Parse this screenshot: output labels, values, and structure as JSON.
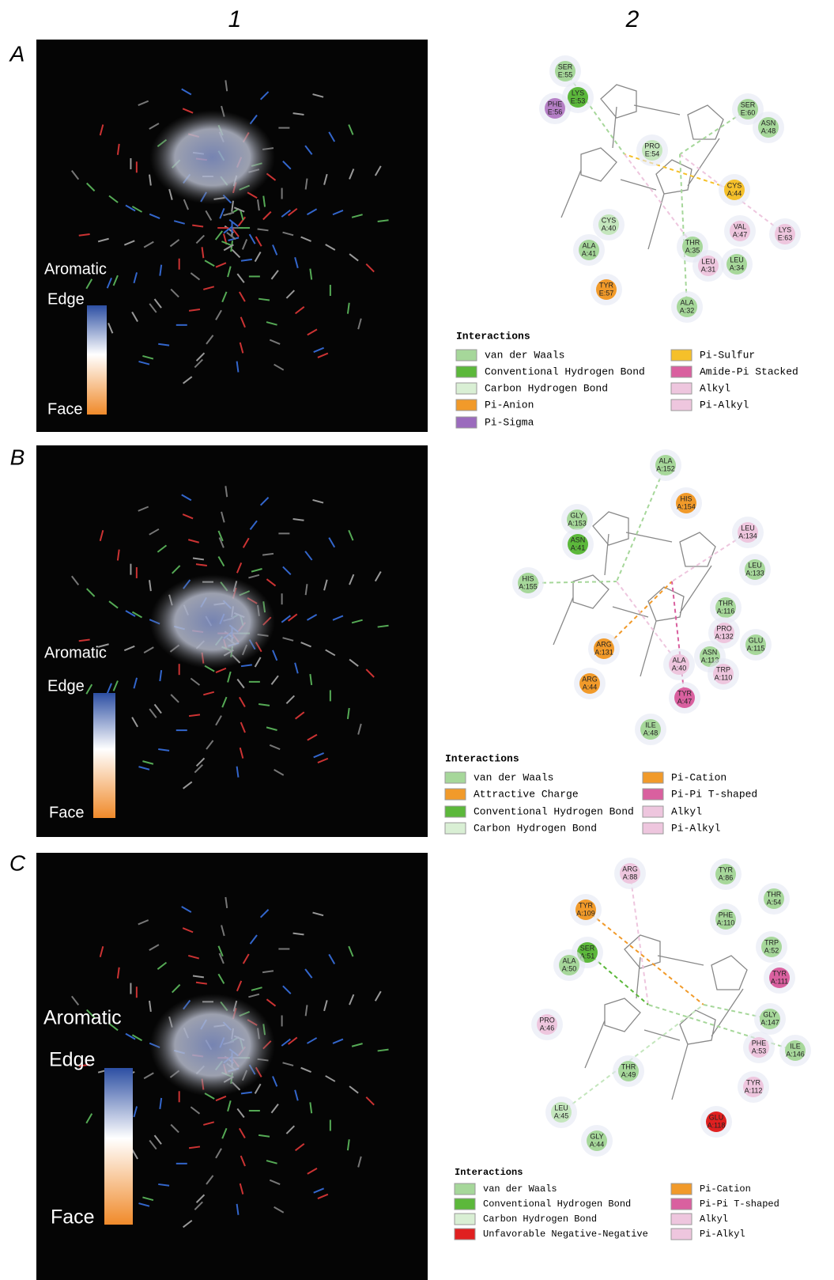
{
  "column_headers": [
    "1",
    "2"
  ],
  "panels": [
    {
      "label": "A",
      "surface_legend": {
        "title": "Aromatic",
        "top": "Edge",
        "bottom": "Face"
      },
      "residues": [
        {
          "res": "SER",
          "id": "E:55",
          "color": "#a6d79a"
        },
        {
          "res": "LYS",
          "id": "E:53",
          "color": "#5cb83b"
        },
        {
          "res": "PHE",
          "id": "E:56",
          "color": "#b57fc6"
        },
        {
          "res": "SER",
          "id": "E:60",
          "color": "#a6d79a"
        },
        {
          "res": "ASN",
          "id": "A:48",
          "color": "#a6d79a"
        },
        {
          "res": "PRO",
          "id": "E:54",
          "color": "#c4e6bd"
        },
        {
          "res": "CYS",
          "id": "A:44",
          "color": "#f5c02a"
        },
        {
          "res": "CYS",
          "id": "A:40",
          "color": "#c4e6bd"
        },
        {
          "res": "VAL",
          "id": "A:47",
          "color": "#eec6de"
        },
        {
          "res": "LYS",
          "id": "E:63",
          "color": "#eec6de"
        },
        {
          "res": "ALA",
          "id": "A:41",
          "color": "#a6d79a"
        },
        {
          "res": "THR",
          "id": "A:35",
          "color": "#a6d79a"
        },
        {
          "res": "LEU",
          "id": "A:31",
          "color": "#eec6de"
        },
        {
          "res": "LEU",
          "id": "A:34",
          "color": "#a6d79a"
        },
        {
          "res": "TYR",
          "id": "E:57",
          "color": "#f19a2a"
        },
        {
          "res": "ALA",
          "id": "A:32",
          "color": "#a6d79a"
        }
      ],
      "interactions": {
        "title": "Interactions",
        "items": [
          {
            "label": "van der Waals",
            "color": "#a6d79a"
          },
          {
            "label": "Conventional Hydrogen Bond",
            "color": "#5cb83b"
          },
          {
            "label": "Carbon Hydrogen Bond",
            "color": "#d9efd4"
          },
          {
            "label": "Pi-Anion",
            "color": "#f19a2a"
          },
          {
            "label": "Pi-Sigma",
            "color": "#9b6bbd"
          },
          {
            "label": "Pi-Sulfur",
            "color": "#f5c02a"
          },
          {
            "label": "Amide-Pi Stacked",
            "color": "#d9609f"
          },
          {
            "label": "Alkyl",
            "color": "#eec6de"
          },
          {
            "label": "Pi-Alkyl",
            "color": "#eec6de"
          }
        ]
      }
    },
    {
      "label": "B",
      "surface_legend": {
        "title": "Aromatic",
        "top": "Edge",
        "bottom": "Face"
      },
      "residues": [
        {
          "res": "ALA",
          "id": "A:152",
          "color": "#a6d79a"
        },
        {
          "res": "HIS",
          "id": "A:154",
          "color": "#f19a2a"
        },
        {
          "res": "GLY",
          "id": "A:153",
          "color": "#a6d79a"
        },
        {
          "res": "LEU",
          "id": "A:134",
          "color": "#eec6de"
        },
        {
          "res": "ASN",
          "id": "A:41",
          "color": "#5cb83b"
        },
        {
          "res": "LEU",
          "id": "A:133",
          "color": "#a6d79a"
        },
        {
          "res": "HIS",
          "id": "A:155",
          "color": "#a6d79a"
        },
        {
          "res": "THR",
          "id": "A:116",
          "color": "#a6d79a"
        },
        {
          "res": "PRO",
          "id": "A:132",
          "color": "#eec6de"
        },
        {
          "res": "ARG",
          "id": "A:131",
          "color": "#f19a2a"
        },
        {
          "res": "GLU",
          "id": "A:115",
          "color": "#a6d79a"
        },
        {
          "res": "ASN",
          "id": "A:113",
          "color": "#a6d79a"
        },
        {
          "res": "ALA",
          "id": "A:40",
          "color": "#eec6de"
        },
        {
          "res": "TRP",
          "id": "A:110",
          "color": "#eec6de"
        },
        {
          "res": "ARG",
          "id": "A:44",
          "color": "#f19a2a"
        },
        {
          "res": "TYR",
          "id": "A:47",
          "color": "#d9609f"
        },
        {
          "res": "ILE",
          "id": "A:48",
          "color": "#a6d79a"
        }
      ],
      "interactions": {
        "title": "Interactions",
        "items": [
          {
            "label": "van der Waals",
            "color": "#a6d79a"
          },
          {
            "label": "Attractive Charge",
            "color": "#f19a2a"
          },
          {
            "label": "Conventional Hydrogen Bond",
            "color": "#5cb83b"
          },
          {
            "label": "Carbon Hydrogen Bond",
            "color": "#d9efd4"
          },
          {
            "label": "Pi-Cation",
            "color": "#f19a2a"
          },
          {
            "label": "Pi-Pi T-shaped",
            "color": "#d9609f"
          },
          {
            "label": "Alkyl",
            "color": "#eec6de"
          },
          {
            "label": "Pi-Alkyl",
            "color": "#eec6de"
          }
        ]
      }
    },
    {
      "label": "C",
      "surface_legend": {
        "title": "Aromatic",
        "top": "Edge",
        "bottom": "Face"
      },
      "residues": [
        {
          "res": "ARG",
          "id": "A:88",
          "color": "#eec6de"
        },
        {
          "res": "TYR",
          "id": "A:86",
          "color": "#a6d79a"
        },
        {
          "res": "THR",
          "id": "A:54",
          "color": "#a6d79a"
        },
        {
          "res": "TYR",
          "id": "A:109",
          "color": "#f19a2a"
        },
        {
          "res": "PHE",
          "id": "A:110",
          "color": "#a6d79a"
        },
        {
          "res": "TRP",
          "id": "A:52",
          "color": "#a6d79a"
        },
        {
          "res": "SER",
          "id": "A:51",
          "color": "#5cb83b"
        },
        {
          "res": "ALA",
          "id": "A:50",
          "color": "#a6d79a"
        },
        {
          "res": "TYR",
          "id": "A:111",
          "color": "#d9609f"
        },
        {
          "res": "GLY",
          "id": "A:147",
          "color": "#a6d79a"
        },
        {
          "res": "PRO",
          "id": "A:46",
          "color": "#eec6de"
        },
        {
          "res": "PHE",
          "id": "A:53",
          "color": "#eec6de"
        },
        {
          "res": "ILE",
          "id": "A:146",
          "color": "#a6d79a"
        },
        {
          "res": "THR",
          "id": "A:49",
          "color": "#a6d79a"
        },
        {
          "res": "TYR",
          "id": "A:112",
          "color": "#eec6de"
        },
        {
          "res": "LEU",
          "id": "A:45",
          "color": "#c4e6bd"
        },
        {
          "res": "GLU",
          "id": "A:118",
          "color": "#e02020"
        },
        {
          "res": "GLY",
          "id": "A:44",
          "color": "#a6d79a"
        }
      ],
      "interactions": {
        "title": "Interactions",
        "items": [
          {
            "label": "van der Waals",
            "color": "#a6d79a"
          },
          {
            "label": "Conventional Hydrogen Bond",
            "color": "#5cb83b"
          },
          {
            "label": "Carbon Hydrogen Bond",
            "color": "#d9efd4"
          },
          {
            "label": "Unfavorable Negative-Negative",
            "color": "#e02020"
          },
          {
            "label": "Pi-Cation",
            "color": "#f19a2a"
          },
          {
            "label": "Pi-Pi T-shaped",
            "color": "#d9609f"
          },
          {
            "label": "Alkyl",
            "color": "#eec6de"
          },
          {
            "label": "Pi-Alkyl",
            "color": "#eec6de"
          }
        ]
      }
    }
  ]
}
